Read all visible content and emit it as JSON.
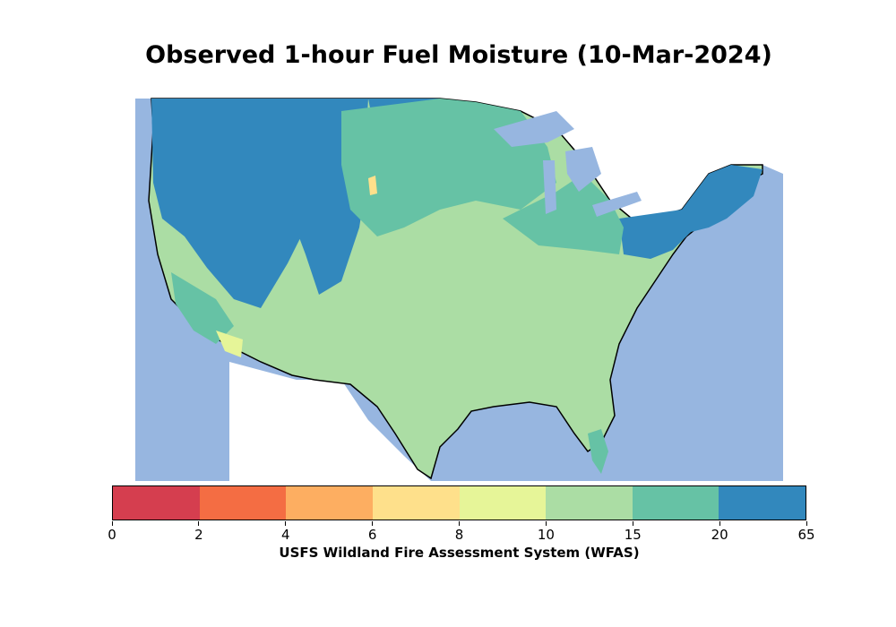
{
  "title": "Observed 1-hour Fuel Moisture (10-Mar-2024)",
  "colorbar": {
    "label": "USFS Wildland Fire Assessment System (WFAS)",
    "ticks": [
      "0",
      "2",
      "4",
      "6",
      "8",
      "10",
      "15",
      "20",
      "65"
    ],
    "colors": [
      "#d53e4f",
      "#f46d43",
      "#fdae61",
      "#fee08b",
      "#e6f598",
      "#abdda4",
      "#66c2a5",
      "#3288bd"
    ]
  },
  "map_colors": {
    "water": "#97b6e0",
    "land_outside": "#ffffff",
    "border": "#000000"
  }
}
